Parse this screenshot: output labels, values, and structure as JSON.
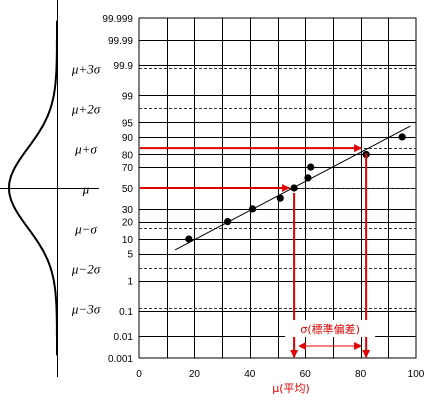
{
  "chart_data": {
    "type": "scatter",
    "title": "",
    "xlabel": "μ(平均)",
    "ylabel": "",
    "x_ticks": [
      "0",
      "20",
      "40",
      "60",
      "80",
      "100"
    ],
    "xlim": [
      0,
      100
    ],
    "y_scale": "normal-probability",
    "y_ticks": [
      "0.001",
      "0.01",
      "0.1",
      "1",
      "5",
      "10",
      "20",
      "30",
      "50",
      "70",
      "80",
      "90",
      "95",
      "99",
      "99.9",
      "99.99",
      "99.999"
    ],
    "sigma_labels": [
      "μ+3σ",
      "μ+2σ",
      "μ+σ",
      "μ",
      "μ−σ",
      "μ−2σ",
      "μ−3σ"
    ],
    "points": [
      {
        "x": 18,
        "y": 10
      },
      {
        "x": 32,
        "y": 20
      },
      {
        "x": 41,
        "y": 30
      },
      {
        "x": 51,
        "y": 40
      },
      {
        "x": 56,
        "y": 50
      },
      {
        "x": 61,
        "y": 60
      },
      {
        "x": 62,
        "y": 70
      },
      {
        "x": 82,
        "y": 80
      },
      {
        "x": 95,
        "y": 90
      }
    ],
    "fit_line": {
      "x": [
        13,
        98
      ],
      "y": [
        6,
        94
      ]
    },
    "annotations": {
      "mean_x": 56,
      "sigma_x": 82,
      "sigma_label": "σ(標準偏差)"
    },
    "grid": true
  }
}
